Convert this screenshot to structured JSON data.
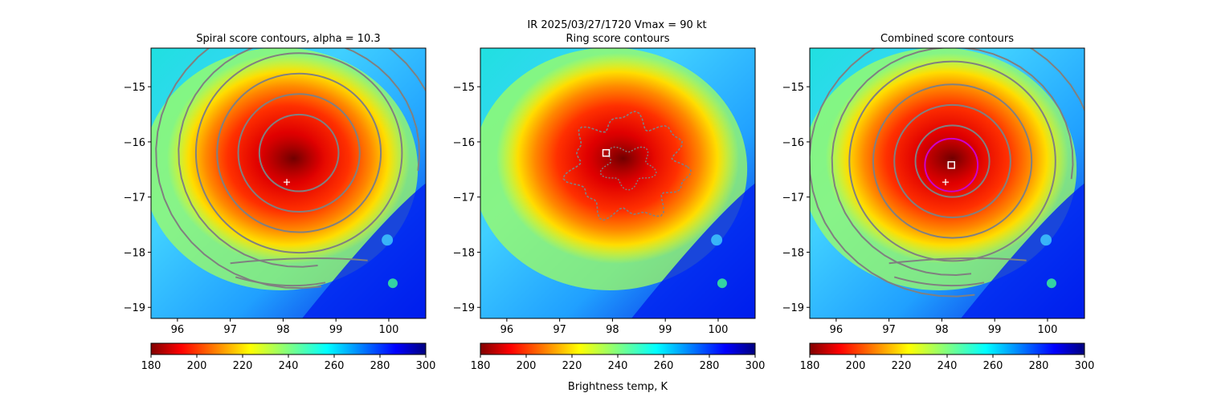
{
  "figure": {
    "suptitle_line1": "IR  2025/03/27/1720    Vmax = 90 kt",
    "colorbar_label": "Brightness temp, K"
  },
  "chart_data": [
    {
      "type": "heatmap",
      "title": "Spiral score contours, alpha = 10.3",
      "xlabel": "",
      "ylabel": "",
      "xlim": [
        95.5,
        100.7
      ],
      "ylim": [
        -19.2,
        -14.3
      ],
      "xticks": [
        "96",
        "97",
        "98",
        "99",
        "100"
      ],
      "yticks": [
        "−15",
        "−16",
        "−17",
        "−18",
        "−19"
      ],
      "colorscale": "jet_r",
      "clim": [
        180,
        300
      ],
      "colorbar_ticks": [
        "180",
        "200",
        "220",
        "240",
        "260",
        "280",
        "300"
      ],
      "cold_center": [
        98.2,
        -16.3
      ],
      "contour_color": "#808080",
      "contour_center": [
        98.3,
        -16.2
      ],
      "contour_radii_deg": [
        0.75,
        1.15,
        1.55,
        1.95,
        2.4,
        2.85
      ],
      "plus_marker": [
        98.07,
        -16.73
      ]
    },
    {
      "type": "heatmap",
      "title": "Ring score contours",
      "xlabel": "",
      "ylabel": "",
      "xlim": [
        95.5,
        100.7
      ],
      "ylim": [
        -19.2,
        -14.3
      ],
      "xticks": [
        "96",
        "97",
        "98",
        "99",
        "100"
      ],
      "yticks": [
        "−15",
        "−16",
        "−17",
        "−18",
        "−19"
      ],
      "colorscale": "jet_r",
      "clim": [
        180,
        300
      ],
      "colorbar_ticks": [
        "180",
        "200",
        "220",
        "240",
        "260",
        "280",
        "300"
      ],
      "cold_center": [
        98.2,
        -16.3
      ],
      "contour_color": "#808080",
      "ring_blob_center": [
        98.3,
        -16.45
      ],
      "square_marker": [
        97.88,
        -16.2
      ]
    },
    {
      "type": "heatmap",
      "title": "Combined score contours",
      "xlabel": "",
      "ylabel": "",
      "xlim": [
        95.5,
        100.7
      ],
      "ylim": [
        -19.2,
        -14.3
      ],
      "xticks": [
        "96",
        "97",
        "98",
        "99",
        "100"
      ],
      "yticks": [
        "−15",
        "−16",
        "−17",
        "−18",
        "−19"
      ],
      "colorscale": "jet_r",
      "clim": [
        180,
        300
      ],
      "colorbar_ticks": [
        "180",
        "200",
        "220",
        "240",
        "260",
        "280",
        "300"
      ],
      "cold_center": [
        98.2,
        -16.3
      ],
      "contour_color": "#808080",
      "contour_center": [
        98.2,
        -16.35
      ],
      "contour_radii_deg": [
        0.7,
        1.1,
        1.5,
        1.95,
        2.4,
        2.85
      ],
      "circle_center": [
        98.18,
        -16.42
      ],
      "circle_radius_deg": 0.5,
      "circle_color": "#cc00cc",
      "square_marker": [
        98.18,
        -16.42
      ],
      "plus_marker": [
        98.07,
        -16.73
      ]
    }
  ]
}
